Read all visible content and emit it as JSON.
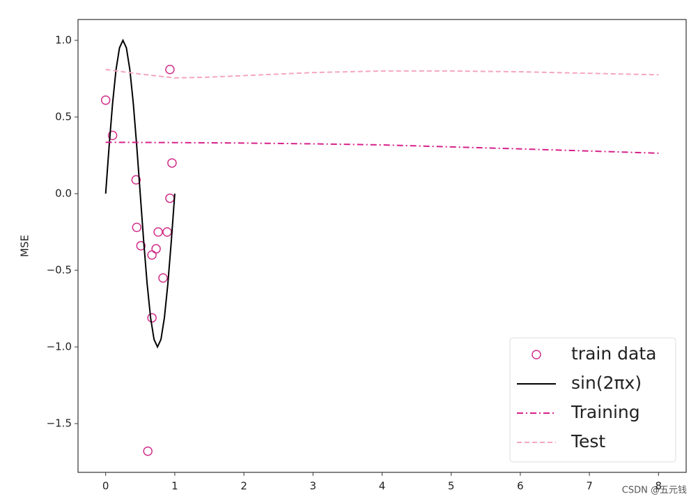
{
  "chart_data": {
    "type": "mixed",
    "ylabel": "MSE",
    "xlim": [
      -0.4,
      8.4
    ],
    "ylim": [
      -1.818,
      1.136
    ],
    "xticks": [
      0,
      1,
      2,
      3,
      4,
      5,
      6,
      7,
      8
    ],
    "yticks": [
      {
        "value": 1.0,
        "label": "1.0"
      },
      {
        "value": 0.5,
        "label": "0.5"
      },
      {
        "value": 0.0,
        "label": "0.0"
      },
      {
        "value": -0.5,
        "label": "−0.5"
      },
      {
        "value": -1.0,
        "label": "−1.0"
      },
      {
        "value": -1.5,
        "label": "−1.5"
      }
    ],
    "legend": "lower right",
    "series": [
      {
        "name": "train data",
        "type": "scatter",
        "color": "#d0308a",
        "x": [
          0.0,
          0.1,
          0.44,
          0.45,
          0.51,
          0.67,
          0.73,
          0.76,
          0.89,
          0.83,
          0.67,
          0.61,
          0.93,
          0.96,
          0.93
        ],
        "values": [
          0.61,
          0.38,
          0.09,
          -0.22,
          -0.34,
          -0.4,
          -0.36,
          -0.25,
          -0.25,
          -0.55,
          -0.81,
          -1.68,
          0.81,
          0.2,
          -0.03
        ]
      },
      {
        "name": "sin(2πx)",
        "type": "line",
        "color": "#000000",
        "dash": "",
        "x": [
          0,
          0.05,
          0.1,
          0.15,
          0.2,
          0.25,
          0.3,
          0.35,
          0.4,
          0.45,
          0.5,
          0.55,
          0.6,
          0.65,
          0.7,
          0.75,
          0.8,
          0.85,
          0.9,
          0.95,
          1
        ],
        "values": [
          0,
          0.309,
          0.588,
          0.809,
          0.951,
          1,
          0.951,
          0.809,
          0.588,
          0.309,
          0,
          -0.309,
          -0.588,
          -0.809,
          -0.951,
          -1,
          -0.951,
          -0.809,
          -0.588,
          -0.309,
          0
        ]
      },
      {
        "name": "Training",
        "type": "line",
        "color": "#d6208a",
        "dash": "9 4 2 4",
        "x": [
          0,
          1,
          2,
          3,
          4,
          5,
          6,
          7,
          8
        ],
        "values": [
          0.335,
          0.333,
          0.33,
          0.325,
          0.318,
          0.305,
          0.292,
          0.278,
          0.264
        ]
      },
      {
        "name": "Test",
        "type": "line",
        "color": "#f4a6c0",
        "dash": "7 4",
        "x": [
          0,
          0.5,
          1,
          1.5,
          2,
          3,
          4,
          5,
          6,
          7,
          8
        ],
        "values": [
          0.81,
          0.78,
          0.755,
          0.76,
          0.77,
          0.79,
          0.8,
          0.8,
          0.795,
          0.785,
          0.775
        ]
      }
    ],
    "watermark": "CSDN @五元钱"
  }
}
